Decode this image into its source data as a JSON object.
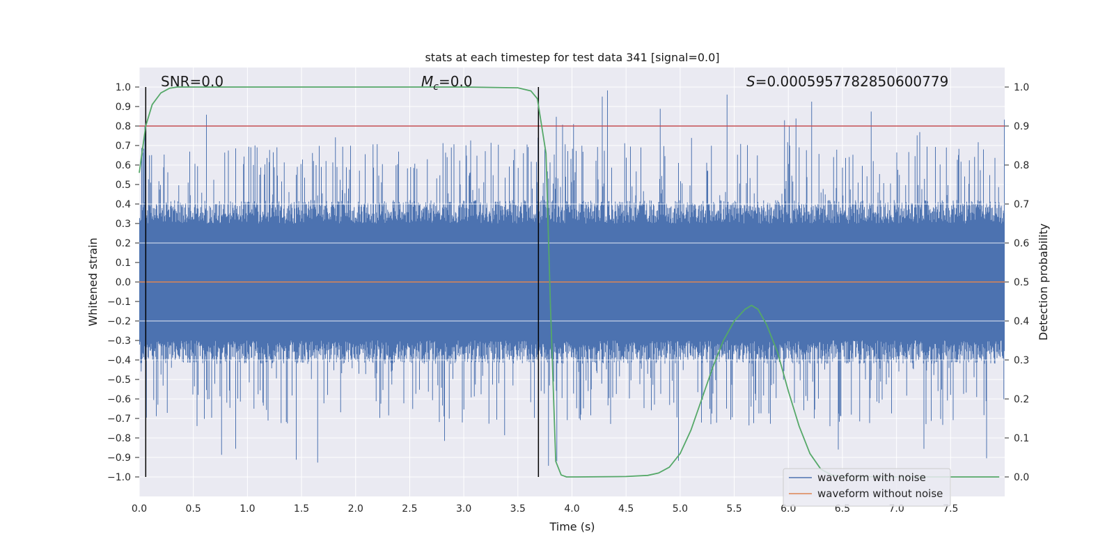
{
  "chart_data": {
    "type": "line",
    "title": "stats at each timestep for test data 341 [signal=0.0]",
    "xlabel": "Time (s)",
    "ylabel": "Whitened strain",
    "y2label": "Detection probability",
    "xlim": [
      0.0,
      8.0
    ],
    "ylim": [
      -1.1,
      1.1
    ],
    "y2lim": [
      -0.05,
      1.05
    ],
    "x_ticks": [
      "0.0",
      "0.5",
      "1.0",
      "1.5",
      "2.0",
      "2.5",
      "3.0",
      "3.5",
      "4.0",
      "4.5",
      "5.0",
      "5.5",
      "6.0",
      "6.5",
      "7.0",
      "7.5"
    ],
    "y_ticks": [
      "1.0",
      "0.9",
      "0.8",
      "0.7",
      "0.6",
      "0.5",
      "0.4",
      "0.3",
      "0.2",
      "0.1",
      "0.0",
      "−0.1",
      "−0.2",
      "−0.3",
      "−0.4",
      "−0.5",
      "−0.6",
      "−0.7",
      "−0.8",
      "−0.9",
      "−1.0"
    ],
    "y2_ticks": [
      "1.0",
      "0.9",
      "0.8",
      "0.7",
      "0.6",
      "0.5",
      "0.4",
      "0.3",
      "0.2",
      "0.1",
      "0.0"
    ],
    "grid": true,
    "annotations": {
      "snr_text": "SNR=0.0",
      "mc_symbol": "M",
      "mc_sub": "c",
      "mc_value": "=0.0",
      "s_symbol": "S",
      "s_value": "=0.0005957782850600779"
    },
    "vertical_lines_x": [
      0.06,
      3.69
    ],
    "threshold": {
      "value": 0.9,
      "axis": "right",
      "color": "#c44e52"
    },
    "legend": {
      "placement": "lower-right",
      "entries": [
        {
          "label": "waveform with noise",
          "color": "#4c72b0"
        },
        {
          "label": "waveform without noise",
          "color": "#dd8452"
        }
      ]
    },
    "series": [
      {
        "name": "waveform with noise",
        "axis": "left",
        "color": "#4c72b0",
        "style": "dense noise trace, approx. ±0.4 typical, peaks to ±1.0"
      },
      {
        "name": "waveform without noise",
        "axis": "left",
        "color": "#dd8452",
        "x": [
          0.0,
          8.0
        ],
        "y": [
          0.0,
          0.0
        ]
      },
      {
        "axis": "right",
        "color": "#55a868",
        "x": [
          0.0,
          0.06,
          0.12,
          0.2,
          0.28,
          0.35,
          0.5,
          1.0,
          2.0,
          3.0,
          3.5,
          3.62,
          3.68,
          3.72,
          3.76,
          3.8,
          3.85,
          3.9,
          3.95,
          4.05,
          4.5,
          4.7,
          4.8,
          4.9,
          5.0,
          5.1,
          5.2,
          5.3,
          5.4,
          5.5,
          5.6,
          5.66,
          5.72,
          5.8,
          5.9,
          6.0,
          6.1,
          6.2,
          6.3,
          6.4,
          6.5,
          7.0,
          7.5,
          7.95
        ],
        "y": [
          0.78,
          0.9,
          0.955,
          0.985,
          0.997,
          1.0,
          1.0,
          1.0,
          1.0,
          1.0,
          0.998,
          0.99,
          0.97,
          0.9,
          0.83,
          0.45,
          0.04,
          0.005,
          0.0,
          0.0,
          0.001,
          0.004,
          0.01,
          0.025,
          0.06,
          0.12,
          0.2,
          0.28,
          0.35,
          0.4,
          0.43,
          0.44,
          0.43,
          0.39,
          0.32,
          0.22,
          0.13,
          0.06,
          0.02,
          0.005,
          0.001,
          0.0,
          0.0,
          0.0
        ]
      }
    ]
  }
}
